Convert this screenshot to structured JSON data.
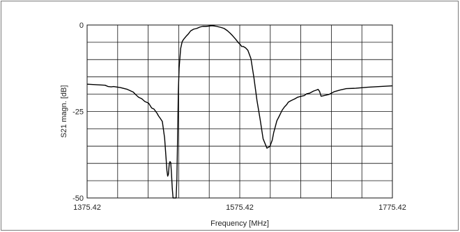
{
  "chart_data": {
    "type": "line",
    "title": "",
    "xlabel": "Frequency [MHz]",
    "ylabel": "S21 magn. [dB]",
    "xlim": [
      1375.42,
      1775.42
    ],
    "ylim": [
      -50,
      0
    ],
    "x_ticks": [
      "1375.42",
      "1575.42",
      "1775.42"
    ],
    "y_ticks": [
      "0",
      "-25",
      "-50"
    ],
    "grid": true,
    "grid_x_divisions": 10,
    "grid_y_divisions": 10,
    "line_color": "#000000",
    "grid_color": "#111111",
    "series": [
      {
        "x": [
          1375.42,
          1391,
          1399,
          1403,
          1407,
          1410,
          1419,
          1428,
          1436,
          1439,
          1443,
          1447,
          1451,
          1456,
          1460,
          1463,
          1467,
          1469,
          1471,
          1474,
          1477,
          1479,
          1480,
          1481,
          1482,
          1483,
          1484,
          1485,
          1486,
          1487,
          1488,
          1489,
          1492,
          1493,
          1494,
          1495,
          1496,
          1498,
          1500,
          1502,
          1505,
          1508,
          1511,
          1515,
          1519,
          1523,
          1527,
          1531,
          1535,
          1539,
          1543,
          1547,
          1551,
          1555,
          1559,
          1563,
          1566,
          1570,
          1574,
          1576,
          1578,
          1580,
          1583,
          1586,
          1590,
          1594,
          1598,
          1602,
          1606,
          1611,
          1615,
          1618,
          1620,
          1622,
          1624,
          1627,
          1629,
          1631,
          1634,
          1637,
          1639,
          1643,
          1647,
          1651,
          1656,
          1660,
          1663,
          1667,
          1672,
          1676,
          1678,
          1680,
          1682,
          1688,
          1692,
          1699,
          1707,
          1715,
          1727,
          1743,
          1759,
          1775.42
        ],
        "y": [
          -17.1,
          -17.3,
          -17.4,
          -17.8,
          -17.9,
          -17.8,
          -18.1,
          -18.6,
          -19.4,
          -20.1,
          -20.9,
          -21.3,
          -22.1,
          -22.6,
          -24.0,
          -24.3,
          -25.5,
          -26.3,
          -26.9,
          -27.9,
          -32.7,
          -38.9,
          -42.1,
          -43.7,
          -43.1,
          -40.1,
          -39.5,
          -39.8,
          -43.2,
          -47.3,
          -50.5,
          -50.5,
          -50.5,
          -44.6,
          -32.7,
          -19.1,
          -12.4,
          -6.8,
          -4.8,
          -4.1,
          -3.3,
          -2.6,
          -1.7,
          -1.2,
          -1.0,
          -0.6,
          -0.4,
          -0.4,
          -0.3,
          -0.2,
          -0.3,
          -0.5,
          -0.7,
          -1.0,
          -1.6,
          -2.4,
          -3.1,
          -4.1,
          -5.2,
          -5.6,
          -6.2,
          -6.2,
          -6.6,
          -7.3,
          -9.7,
          -15.2,
          -21.8,
          -27.1,
          -32.9,
          -35.6,
          -35.1,
          -33.3,
          -31.0,
          -29.4,
          -27.7,
          -26.4,
          -25.5,
          -24.6,
          -23.7,
          -23.0,
          -22.3,
          -21.8,
          -21.4,
          -20.9,
          -20.6,
          -20.4,
          -19.9,
          -19.7,
          -19.1,
          -18.8,
          -18.6,
          -19.2,
          -20.6,
          -20.3,
          -20.1,
          -19.3,
          -18.8,
          -18.4,
          -18.3,
          -18.0,
          -17.8,
          -17.6
        ]
      }
    ]
  }
}
